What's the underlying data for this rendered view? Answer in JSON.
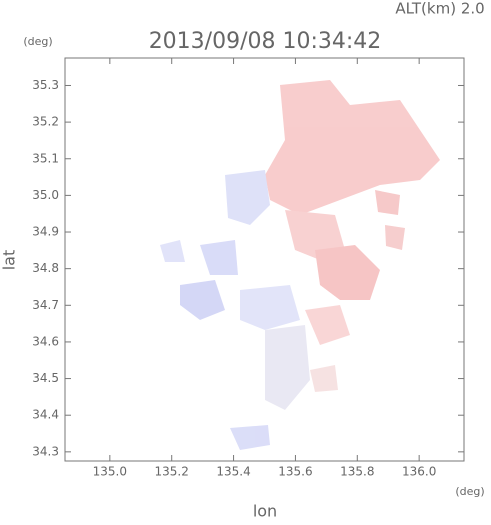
{
  "chart_data": {
    "type": "map",
    "title": "2013/09/08 10:34:42",
    "subtitle": "ALT(km) 2.0",
    "x_label": "lon",
    "y_label": "lat",
    "x_unit": "(deg)",
    "y_unit": "(deg)",
    "xlim": [
      134.855,
      136.145
    ],
    "ylim": [
      34.275,
      35.375
    ],
    "xticks": [
      {
        "value": 135.0,
        "label": "135.0"
      },
      135.2,
      135.4,
      135.6,
      135.8,
      {
        "value": 136.0,
        "label": "136.0"
      }
    ],
    "yticks": [
      34.3,
      34.4,
      34.5,
      34.6,
      34.7,
      34.8,
      34.9,
      {
        "value": 35.0,
        "label": "35.0"
      },
      35.1,
      35.2,
      35.3
    ],
    "axis_color": "#777777"
  }
}
